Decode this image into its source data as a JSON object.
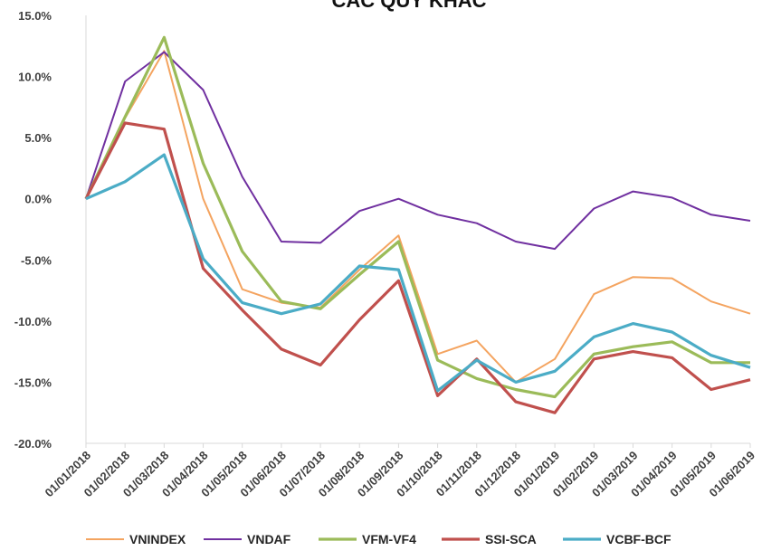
{
  "chart_data": {
    "type": "line",
    "title": "CÁC QUỸ KHÁC",
    "xlabel": "",
    "ylabel": "",
    "categories": [
      "01/01/2018",
      "01/02/2018",
      "01/03/2018",
      "01/04/2018",
      "01/05/2018",
      "01/06/2018",
      "01/07/2018",
      "01/08/2018",
      "01/09/2018",
      "01/10/2018",
      "01/11/2018",
      "01/12/2018",
      "01/01/2019",
      "01/02/2019",
      "01/03/2019",
      "01/04/2019",
      "01/05/2019",
      "01/06/2019"
    ],
    "ylim": [
      -20,
      15
    ],
    "yticks": [
      {
        "value": 15,
        "label": "15.0%"
      },
      {
        "value": 10,
        "label": "10.0%"
      },
      {
        "value": 5,
        "label": "5.0%"
      },
      {
        "value": 0,
        "label": "0.0%"
      },
      {
        "value": -5,
        "label": "-5.0%"
      },
      {
        "value": -10,
        "label": "-10.0%"
      },
      {
        "value": -15,
        "label": "-15.0%"
      },
      {
        "value": -20,
        "label": "-20.0%"
      }
    ],
    "grid": false,
    "legend_position": "bottom",
    "series": [
      {
        "name": "VNINDEX",
        "color": "#F4A460",
        "values": [
          0.0,
          6.6,
          12.1,
          0.0,
          -7.4,
          -8.5,
          -8.9,
          -5.8,
          -3.0,
          -12.7,
          -11.6,
          -15.0,
          -13.1,
          -7.8,
          -6.4,
          -6.5,
          -8.4,
          -9.4
        ]
      },
      {
        "name": "VNDAF",
        "color": "#7030A0",
        "values": [
          0.0,
          9.6,
          12.0,
          8.9,
          1.8,
          -3.5,
          -3.6,
          -1.0,
          0.0,
          -1.3,
          -2.0,
          -3.5,
          -4.1,
          -0.8,
          0.6,
          0.1,
          -1.3,
          -1.8
        ]
      },
      {
        "name": "VFM-VF4",
        "color": "#9BBB59",
        "values": [
          0.0,
          6.7,
          13.2,
          2.9,
          -4.3,
          -8.4,
          -9.0,
          -6.2,
          -3.5,
          -13.2,
          -14.7,
          -15.6,
          -16.2,
          -12.7,
          -12.1,
          -11.7,
          -13.4,
          -13.4
        ]
      },
      {
        "name": "SSI-SCA",
        "color": "#C0504D",
        "values": [
          0.0,
          6.2,
          5.7,
          -5.7,
          -9.1,
          -12.3,
          -13.6,
          -9.9,
          -6.7,
          -16.1,
          -13.1,
          -16.6,
          -17.5,
          -13.1,
          -12.5,
          -13.0,
          -15.6,
          -14.8
        ]
      },
      {
        "name": "VCBF-BCF",
        "color": "#4BACC6",
        "values": [
          0.0,
          1.4,
          3.6,
          -4.9,
          -8.5,
          -9.4,
          -8.6,
          -5.5,
          -5.8,
          -15.7,
          -13.2,
          -15.0,
          -14.1,
          -11.3,
          -10.2,
          -10.9,
          -12.8,
          -13.8
        ]
      }
    ]
  }
}
